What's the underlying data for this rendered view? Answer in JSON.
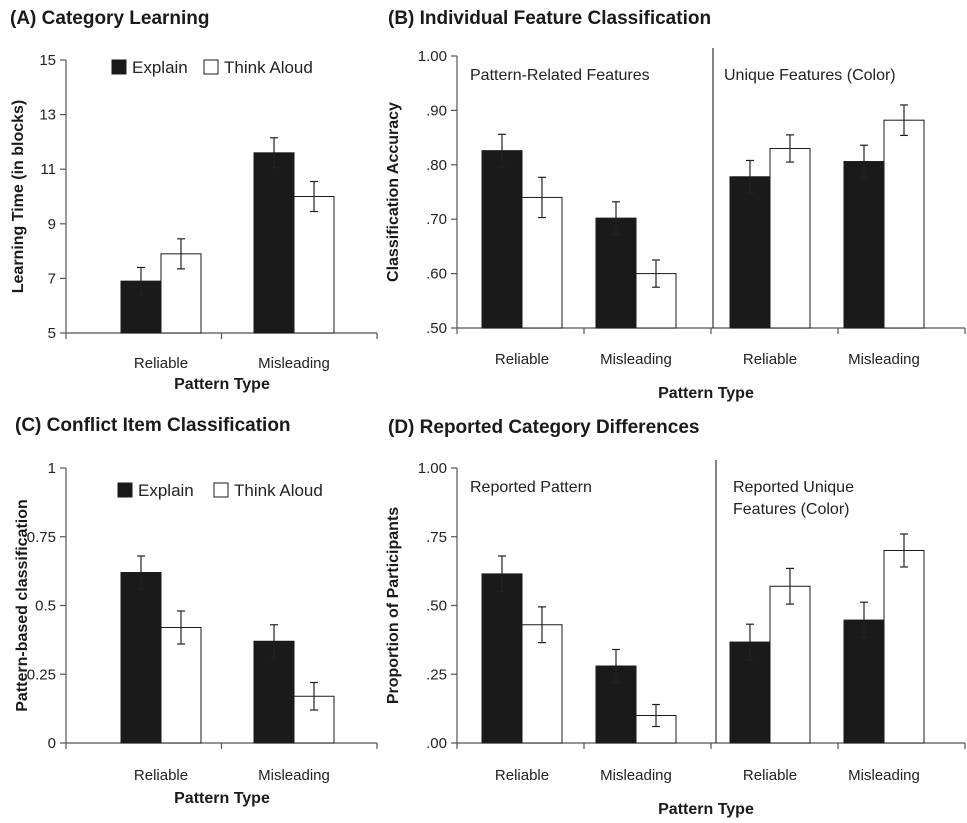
{
  "colors": {
    "explain": "#1a1a1a",
    "think_aloud": "#ffffff",
    "axis": "#555555"
  },
  "chart_data": [
    {
      "type": "bar",
      "title": "(A) Category Learning",
      "xlabel": "Pattern Type",
      "ylabel": "Learning Time (in blocks)",
      "ylim": [
        5,
        15
      ],
      "yticks": [
        "5",
        "7",
        "9",
        "11",
        "13",
        "15"
      ],
      "categories": [
        "Reliable",
        "Misleading"
      ],
      "legend": {
        "placement": "top"
      },
      "series": [
        {
          "name": "Explain",
          "values": [
            6.9,
            11.6
          ],
          "errors": [
            0.5,
            0.55
          ]
        },
        {
          "name": "Think Aloud",
          "values": [
            7.9,
            10.0
          ],
          "errors": [
            0.55,
            0.55
          ]
        }
      ]
    },
    {
      "type": "bar",
      "title": "(B) Individual Feature Classification",
      "xlabel": "Pattern Type",
      "ylabel": "Classification Accuracy",
      "ylim": [
        0.5,
        1.0
      ],
      "yticks": [
        "1.00",
        ".90",
        ".80",
        ".70",
        ".60",
        ".50"
      ],
      "sections": [
        "Pattern-Related Features",
        "Unique Features (Color)"
      ],
      "categories": [
        "Reliable",
        "Misleading",
        "Reliable",
        "Misleading"
      ],
      "series": [
        {
          "name": "Explain",
          "values": [
            0.826,
            0.702,
            0.778,
            0.806
          ],
          "errors": [
            0.03,
            0.03,
            0.03,
            0.03
          ]
        },
        {
          "name": "Think Aloud",
          "values": [
            0.74,
            0.6,
            0.83,
            0.882
          ],
          "errors": [
            0.037,
            0.025,
            0.025,
            0.028
          ]
        }
      ]
    },
    {
      "type": "bar",
      "title": "(C) Conflict Item Classification",
      "xlabel": "Pattern Type",
      "ylabel": "Pattern-based classification",
      "ylim": [
        0,
        1
      ],
      "yticks": [
        "1",
        "0.75",
        "0.5",
        "0.25",
        "0"
      ],
      "categories": [
        "Reliable",
        "Misleading"
      ],
      "legend": {
        "placement": "top"
      },
      "series": [
        {
          "name": "Explain",
          "values": [
            0.62,
            0.37
          ],
          "errors": [
            0.06,
            0.06
          ]
        },
        {
          "name": "Think Aloud",
          "values": [
            0.42,
            0.17
          ],
          "errors": [
            0.06,
            0.05
          ]
        }
      ]
    },
    {
      "type": "bar",
      "title": "(D) Reported Category Differences",
      "xlabel": "Pattern Type",
      "ylabel": "Proportion of Participants",
      "ylim": [
        0,
        1.0
      ],
      "yticks": [
        "1.00",
        ".75",
        ".50",
        ".25",
        ".00"
      ],
      "sections": [
        "Reported Pattern",
        "Reported Unique\nFeatures (Color)"
      ],
      "categories": [
        "Reliable",
        "Misleading",
        "Reliable",
        "Misleading"
      ],
      "series": [
        {
          "name": "Explain",
          "values": [
            0.615,
            0.28,
            0.367,
            0.447
          ],
          "errors": [
            0.065,
            0.06,
            0.065,
            0.065
          ]
        },
        {
          "name": "Think Aloud",
          "values": [
            0.43,
            0.1,
            0.57,
            0.7
          ],
          "errors": [
            0.065,
            0.04,
            0.065,
            0.06
          ]
        }
      ]
    }
  ]
}
